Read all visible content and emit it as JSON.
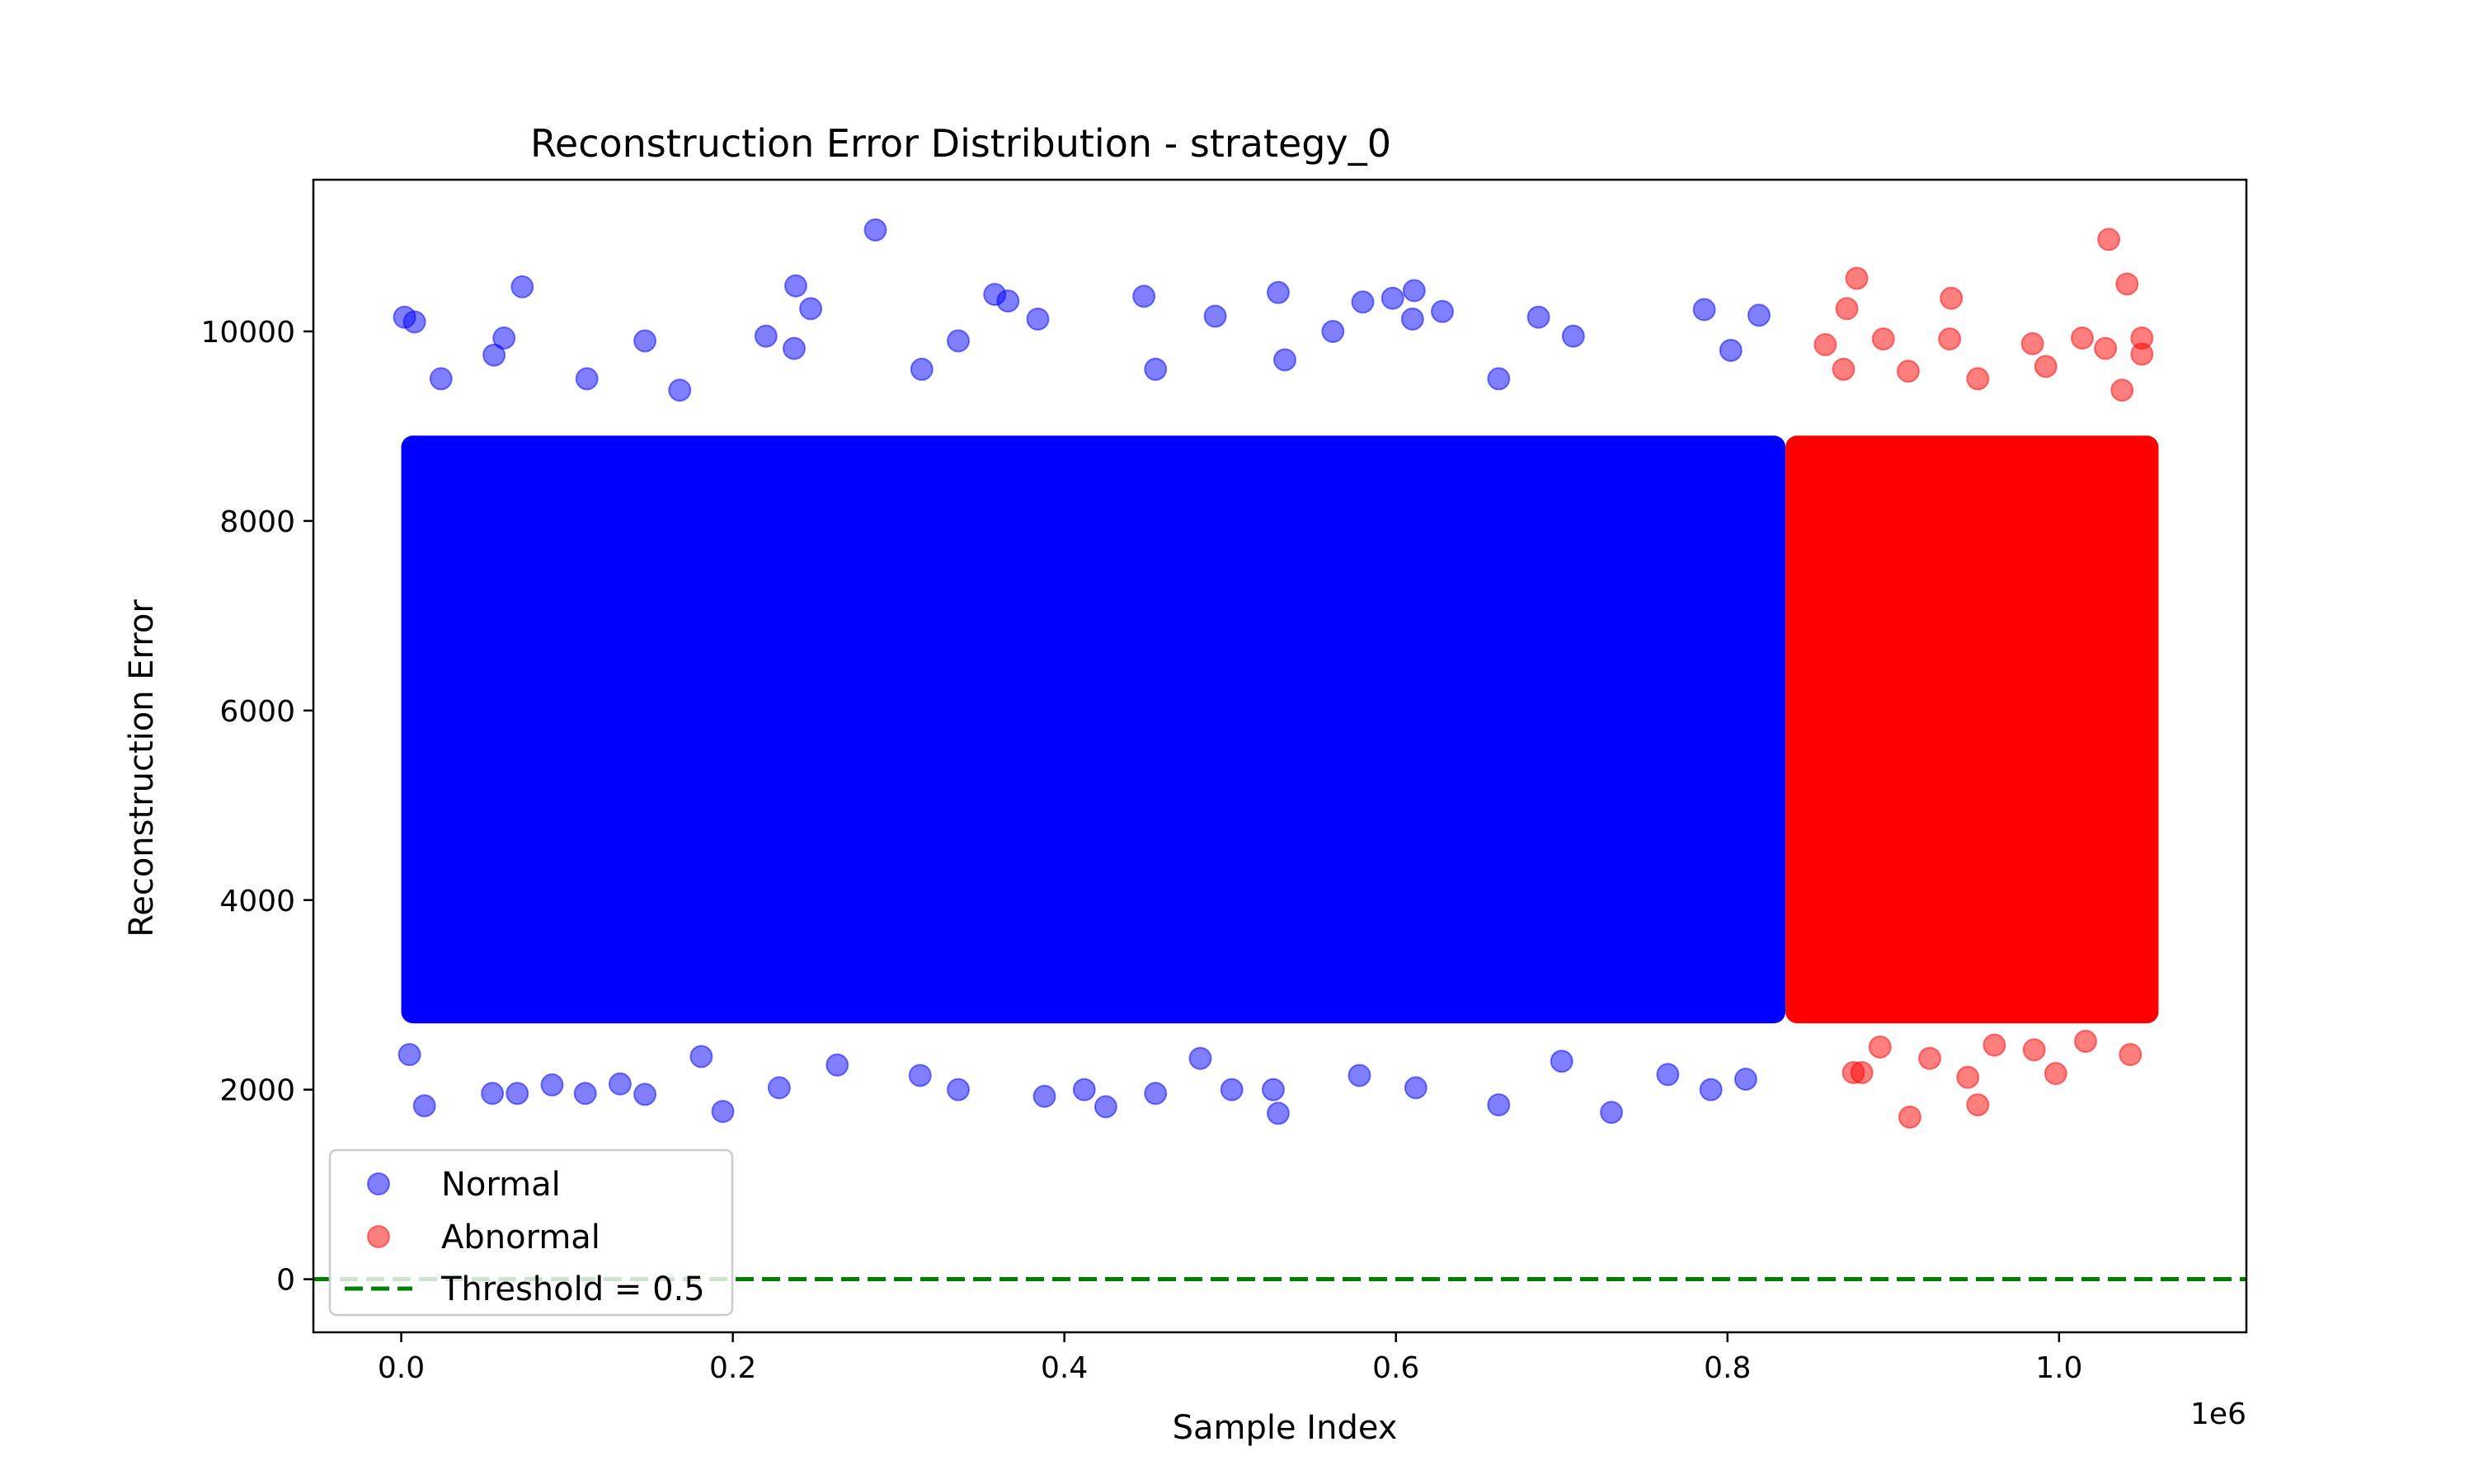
{
  "chart_data": {
    "type": "scatter",
    "title": "Reconstruction Error Distribution - strategy_0",
    "xlabel": "Sample Index",
    "ylabel": "Reconstruction Error",
    "x_offset_label": "1e6",
    "xlim": [
      -0.053,
      1.113
    ],
    "ylim": [
      -560,
      11600
    ],
    "x_ticks": [
      0.0,
      0.2,
      0.4,
      0.6,
      0.8,
      1.0
    ],
    "x_tick_labels": [
      "0.0",
      "0.2",
      "0.4",
      "0.6",
      "0.8",
      "1.0"
    ],
    "y_ticks": [
      0,
      2000,
      4000,
      6000,
      8000,
      10000
    ],
    "y_tick_labels": [
      "0",
      "2000",
      "4000",
      "6000",
      "8000",
      "10000"
    ],
    "grid": false,
    "legend_position": "lower-left",
    "threshold": {
      "label": "Threshold = 0.5",
      "y": 0.5,
      "color": "#008000"
    },
    "series": [
      {
        "name": "Normal",
        "color": "#0000ff",
        "alpha": 0.5,
        "dense_band": {
          "x_range": [
            0.0,
            0.835
          ],
          "y_range": [
            2700,
            8900
          ]
        },
        "outliers": [
          [
            0.002,
            10150
          ],
          [
            0.008,
            10100
          ],
          [
            0.073,
            10470
          ],
          [
            0.056,
            9750
          ],
          [
            0.062,
            9930
          ],
          [
            0.147,
            9900
          ],
          [
            0.238,
            10480
          ],
          [
            0.247,
            10240
          ],
          [
            0.237,
            9820
          ],
          [
            0.22,
            9950
          ],
          [
            0.286,
            11070
          ],
          [
            0.358,
            10390
          ],
          [
            0.366,
            10320
          ],
          [
            0.384,
            10130
          ],
          [
            0.336,
            9900
          ],
          [
            0.448,
            10370
          ],
          [
            0.529,
            10410
          ],
          [
            0.491,
            10160
          ],
          [
            0.562,
            10000
          ],
          [
            0.58,
            10310
          ],
          [
            0.598,
            10350
          ],
          [
            0.611,
            10430
          ],
          [
            0.61,
            10130
          ],
          [
            0.628,
            10210
          ],
          [
            0.686,
            10150
          ],
          [
            0.707,
            9950
          ],
          [
            0.786,
            10230
          ],
          [
            0.802,
            9800
          ],
          [
            0.819,
            10170
          ],
          [
            0.662,
            9500
          ],
          [
            0.533,
            9700
          ],
          [
            0.455,
            9600
          ],
          [
            0.314,
            9600
          ],
          [
            0.168,
            9380
          ],
          [
            0.024,
            9500
          ],
          [
            0.112,
            9500
          ],
          [
            0.005,
            2370
          ],
          [
            0.014,
            1830
          ],
          [
            0.055,
            1960
          ],
          [
            0.07,
            1960
          ],
          [
            0.091,
            2050
          ],
          [
            0.111,
            1960
          ],
          [
            0.147,
            1950
          ],
          [
            0.132,
            2060
          ],
          [
            0.194,
            1770
          ],
          [
            0.228,
            2020
          ],
          [
            0.313,
            2150
          ],
          [
            0.336,
            2000
          ],
          [
            0.388,
            1930
          ],
          [
            0.412,
            2000
          ],
          [
            0.425,
            1820
          ],
          [
            0.455,
            1960
          ],
          [
            0.501,
            2000
          ],
          [
            0.526,
            2000
          ],
          [
            0.529,
            1750
          ],
          [
            0.578,
            2150
          ],
          [
            0.612,
            2020
          ],
          [
            0.662,
            1840
          ],
          [
            0.73,
            1760
          ],
          [
            0.79,
            2000
          ],
          [
            0.811,
            2110
          ],
          [
            0.263,
            2260
          ],
          [
            0.482,
            2330
          ],
          [
            0.7,
            2300
          ],
          [
            0.764,
            2160
          ],
          [
            0.181,
            2350
          ]
        ]
      },
      {
        "name": "Abnormal",
        "color": "#ff0000",
        "alpha": 0.5,
        "dense_band": {
          "x_range": [
            0.835,
            1.06
          ],
          "y_range": [
            2700,
            8900
          ]
        },
        "outliers": [
          [
            0.878,
            10560
          ],
          [
            0.872,
            10240
          ],
          [
            0.935,
            10350
          ],
          [
            1.03,
            10970
          ],
          [
            1.041,
            10500
          ],
          [
            1.05,
            9930
          ],
          [
            0.859,
            9860
          ],
          [
            0.894,
            9920
          ],
          [
            0.934,
            9920
          ],
          [
            0.984,
            9870
          ],
          [
            1.014,
            9930
          ],
          [
            1.028,
            9820
          ],
          [
            1.05,
            9760
          ],
          [
            0.909,
            9580
          ],
          [
            0.951,
            9500
          ],
          [
            0.992,
            9630
          ],
          [
            1.038,
            9380
          ],
          [
            0.87,
            9600
          ],
          [
            0.91,
            1710
          ],
          [
            0.951,
            1840
          ],
          [
            0.876,
            2180
          ],
          [
            0.881,
            2180
          ],
          [
            0.945,
            2130
          ],
          [
            0.998,
            2170
          ],
          [
            0.985,
            2420
          ],
          [
            1.043,
            2370
          ],
          [
            0.922,
            2330
          ],
          [
            0.961,
            2470
          ],
          [
            0.892,
            2450
          ],
          [
            1.016,
            2510
          ]
        ]
      }
    ]
  }
}
